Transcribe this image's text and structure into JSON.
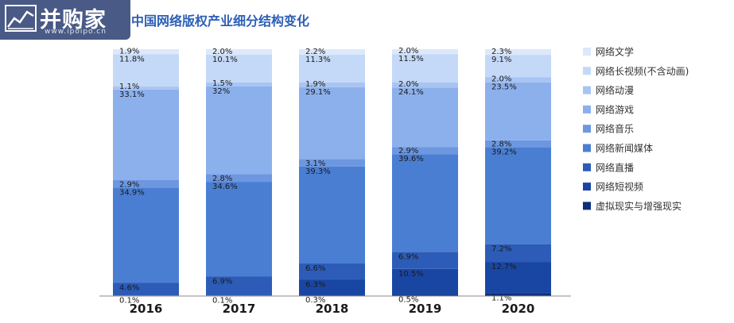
{
  "logo": {
    "name": "并购家",
    "url": "www.ipoipo.cn"
  },
  "chart_data": {
    "type": "bar",
    "stacked": true,
    "percent": true,
    "title": "中国网络版权产业细分结构变化",
    "categories": [
      "2016",
      "2017",
      "2018",
      "2019",
      "2020"
    ],
    "series": [
      {
        "name": "虚拟现实与增强现实",
        "color": "#0d2f7a",
        "values": [
          0.1,
          0.1,
          0.3,
          0.5,
          1.1
        ]
      },
      {
        "name": "网络短视频",
        "color": "#1a46a3",
        "values": [
          0.1,
          0.1,
          6.3,
          10.5,
          12.7
        ]
      },
      {
        "name": "网络直播",
        "color": "#2c5cb8",
        "values": [
          4.6,
          6.9,
          6.6,
          6.9,
          7.2
        ]
      },
      {
        "name": "网络新闻媒体",
        "color": "#4a7ed2",
        "values": [
          34.9,
          34.6,
          39.3,
          39.6,
          39.2
        ]
      },
      {
        "name": "网络音乐",
        "color": "#6d97e0",
        "values": [
          2.9,
          2.8,
          3.1,
          2.9,
          2.8
        ]
      },
      {
        "name": "网络游戏",
        "color": "#8cb0ec",
        "values": [
          33.1,
          32,
          29.1,
          24.1,
          23.5
        ]
      },
      {
        "name": "网络动漫",
        "color": "#a8c4f2",
        "values": [
          1.1,
          1.5,
          1.9,
          2.0,
          2.0
        ]
      },
      {
        "name": "网络长视频(不含动画)",
        "color": "#c4d8f7",
        "values": [
          11.8,
          10.1,
          11.3,
          11.5,
          9.1
        ]
      },
      {
        "name": "网络文学",
        "color": "#dce8fb",
        "values": [
          1.9,
          2.0,
          2.2,
          2.0,
          2.3
        ]
      }
    ],
    "value_labels": [
      [
        "0.1%",
        "0.1%",
        "0.3%",
        "0.5%",
        "1.1%"
      ],
      [
        "",
        "",
        "6.3%",
        "10.5%",
        "12.7%"
      ],
      [
        "4.6%",
        "6.9%",
        "6.6%",
        "6.9%",
        "7.2%"
      ],
      [
        "34.9%",
        "34.6%",
        "39.3%",
        "39.6%",
        "39.2%"
      ],
      [
        "2.9%",
        "2.8%",
        "3.1%",
        "2.9%",
        "2.8%"
      ],
      [
        "33.1%",
        "32%",
        "29.1%",
        "24.1%",
        "23.5%"
      ],
      [
        "1.1%",
        "1.5%",
        "1.9%",
        "2.0%",
        "2.0%"
      ],
      [
        "11.8%",
        "10.1%",
        "11.3%",
        "11.5%",
        "9.1%"
      ],
      [
        "1.9%",
        "2.0%",
        "2.2%",
        "2.0%",
        "2.3%"
      ]
    ],
    "legend_order": [
      "网络文学",
      "网络长视频(不含动画)",
      "网络动漫",
      "网络游戏",
      "网络音乐",
      "网络新闻媒体",
      "网络直播",
      "网络短视频",
      "虚拟现实与增强现实"
    ],
    "legend_position": "right",
    "grid": false
  }
}
